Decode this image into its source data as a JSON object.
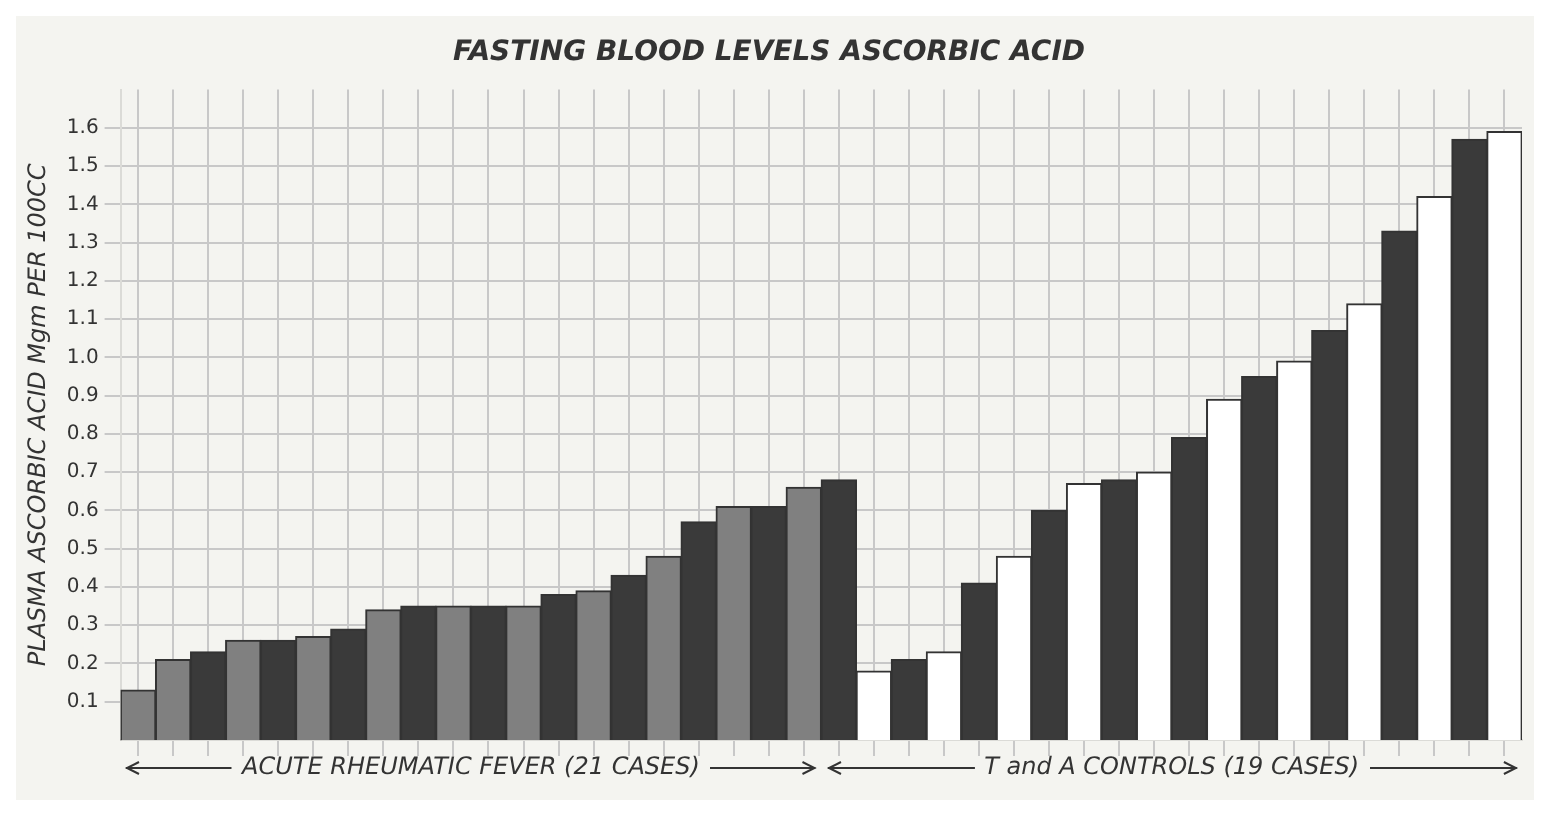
{
  "chart_data": {
    "type": "bar",
    "title": "FASTING BLOOD LEVELS ASCORBIC ACID",
    "ylabel": "PLASMA ASCORBIC ACID Mgm PER 100CC",
    "categories": [
      null,
      null,
      null,
      null,
      null,
      null,
      null,
      null,
      null,
      null,
      null,
      null,
      null,
      null,
      null,
      null,
      null,
      null,
      null,
      null,
      null,
      null,
      null,
      null,
      null,
      null,
      null,
      null,
      null,
      null,
      null,
      null,
      null,
      null,
      null,
      null,
      null,
      null,
      null,
      null
    ],
    "values": [
      0.13,
      0.21,
      0.23,
      0.26,
      0.26,
      0.27,
      0.29,
      0.34,
      0.35,
      0.35,
      0.35,
      0.35,
      0.38,
      0.39,
      0.43,
      0.48,
      0.57,
      0.61,
      0.61,
      0.66,
      0.68,
      0.18,
      0.21,
      0.23,
      0.41,
      0.48,
      0.6,
      0.67,
      0.68,
      0.7,
      0.79,
      0.89,
      0.95,
      0.99,
      1.07,
      1.14,
      1.33,
      1.42,
      1.57,
      1.59
    ],
    "colors": [
      "#808080",
      "#808080",
      "#3a3a3a",
      "#808080",
      "#3a3a3a",
      "#808080",
      "#3a3a3a",
      "#808080",
      "#3a3a3a",
      "#808080",
      "#3a3a3a",
      "#808080",
      "#3a3a3a",
      "#808080",
      "#3a3a3a",
      "#808080",
      "#3a3a3a",
      "#808080",
      "#3a3a3a",
      "#808080",
      "#3a3a3a",
      "#ffffff",
      "#3a3a3a",
      "#ffffff",
      "#3a3a3a",
      "#ffffff",
      "#3a3a3a",
      "#ffffff",
      "#3a3a3a",
      "#ffffff",
      "#3a3a3a",
      "#ffffff",
      "#3a3a3a",
      "#ffffff",
      "#3a3a3a",
      "#ffffff",
      "#3a3a3a",
      "#ffffff",
      "#3a3a3a",
      "#ffffff"
    ],
    "ylim": [
      0,
      1.7
    ],
    "yticks": [
      {
        "value": 0.1,
        "label": "0.1"
      },
      {
        "value": 0.2,
        "label": "0.2"
      },
      {
        "value": 0.3,
        "label": "0.3"
      },
      {
        "value": 0.4,
        "label": "0.4"
      },
      {
        "value": 0.5,
        "label": "0.5"
      },
      {
        "value": 0.6,
        "label": "0.6"
      },
      {
        "value": 0.7,
        "label": "0.7"
      },
      {
        "value": 0.8,
        "label": "0.8"
      },
      {
        "value": 0.9,
        "label": "0.9"
      },
      {
        "value": 1.0,
        "label": "1.0"
      },
      {
        "value": 1.1,
        "label": "1.1"
      },
      {
        "value": 1.2,
        "label": "1.2"
      },
      {
        "value": 1.3,
        "label": "1.3"
      },
      {
        "value": 1.4,
        "label": "1.4"
      },
      {
        "value": 1.5,
        "label": "1.5"
      },
      {
        "value": 1.6,
        "label": "1.6"
      }
    ],
    "grid": true,
    "annotations": [
      "ACUTE RHEUMATIC FEVER (21 CASES)",
      "T and A CONTROLS (19 CASES)"
    ]
  }
}
